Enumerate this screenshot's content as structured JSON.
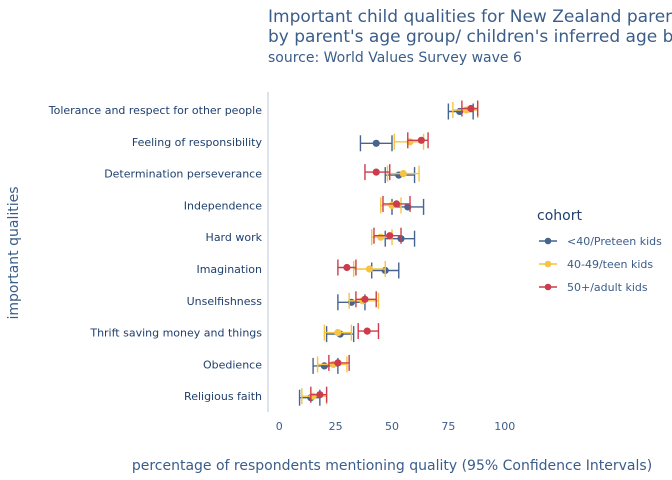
{
  "chart_data": {
    "type": "scatter",
    "title": "Important child qualities for New Zealand parents,",
    "title_line2": "by parent's age group/ children's inferred age band",
    "subtitle": "source: World Values Survey wave 6",
    "xlabel": "percentage of respondents mentioning quality (95% Confidence Intervals)",
    "ylabel": "important qualities",
    "xlim": [
      -5,
      105
    ],
    "xticks": [
      0,
      25,
      50,
      75,
      100
    ],
    "grid": false,
    "legend_title": "cohort",
    "legend_placement": "right",
    "categories": [
      "Tolerance and respect for other people",
      "Feeling of responsibility",
      "Determination perseverance",
      "Independence",
      "Hard work",
      "Imagination",
      "Unselfishness",
      "Thrift saving money and things",
      "Obedience",
      "Religious faith"
    ],
    "series": [
      {
        "name": "<40/Preteen kids",
        "color": "#46648f",
        "values": [
          80,
          43,
          53,
          57,
          54,
          47,
          32,
          27,
          20,
          14
        ],
        "lower": [
          75,
          36,
          47,
          50,
          47,
          41,
          26,
          21,
          15,
          9
        ],
        "upper": [
          86,
          50,
          60,
          64,
          60,
          53,
          38,
          33,
          26,
          18
        ]
      },
      {
        "name": "40-49/teen kids",
        "color": "#f4c442",
        "values": [
          83,
          58,
          55,
          50,
          45,
          40,
          37,
          26,
          24,
          15
        ],
        "lower": [
          77,
          51,
          48,
          45,
          41,
          33,
          31,
          20,
          17,
          10
        ],
        "upper": [
          88,
          64,
          62,
          54,
          50,
          47,
          44,
          32,
          30,
          21
        ]
      },
      {
        "name": "50+/adult kids",
        "color": "#cc3c4c",
        "values": [
          85,
          63,
          43,
          52,
          49,
          30,
          38,
          39,
          26,
          18
        ],
        "lower": [
          81,
          57,
          38,
          46,
          42,
          26,
          34,
          35,
          22,
          14
        ],
        "upper": [
          88,
          66,
          49,
          58,
          54,
          34,
          43,
          44,
          31,
          21
        ]
      }
    ]
  }
}
